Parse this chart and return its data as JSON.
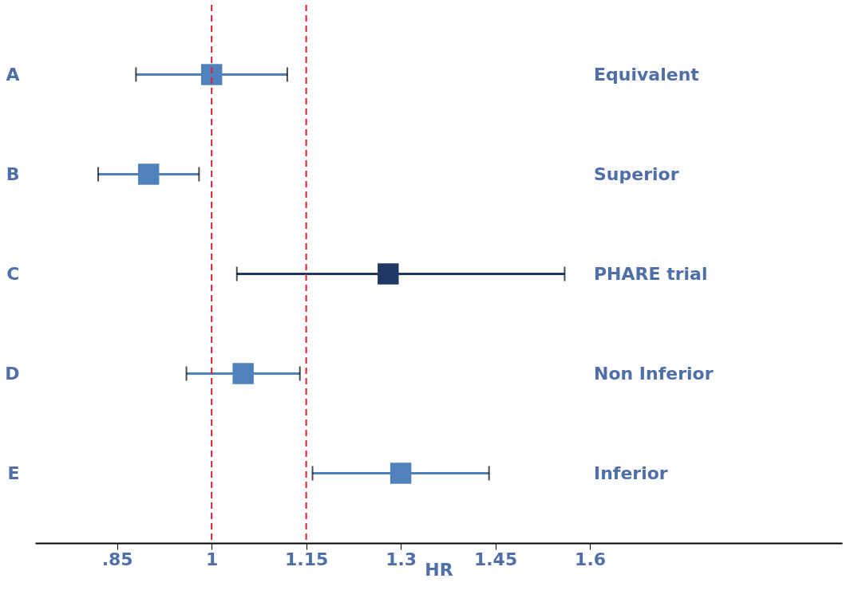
{
  "chart_data": {
    "type": "scatter",
    "orientation": "horizontal",
    "xlabel": "HR",
    "categories": [
      "A",
      "B",
      "C",
      "D",
      "E"
    ],
    "values": [
      1.0,
      0.9,
      1.28,
      1.05,
      1.3
    ],
    "errors": [
      [
        0.88,
        1.12
      ],
      [
        0.82,
        0.98
      ],
      [
        1.04,
        1.56
      ],
      [
        0.96,
        1.14
      ],
      [
        1.16,
        1.44
      ]
    ],
    "colors": [
      "#4f81bd",
      "#4f81bd",
      "#1f3864",
      "#4f81bd",
      "#4f81bd"
    ],
    "marker": "square",
    "xlim": [
      0.72,
      2.0
    ],
    "xticks": [
      {
        "value": 0.85,
        "label": ".85"
      },
      1,
      1.15,
      1.3,
      1.45,
      1.6
    ],
    "ref_lines": [
      {
        "axis": "x",
        "value": 1,
        "color": "#e0202f",
        "line_style": "dashed"
      },
      {
        "axis": "x",
        "value": 1.15,
        "color": "#e0202f",
        "line_style": "dashed"
      }
    ],
    "annotations": [
      "Equivalent",
      "Superior",
      "PHARE trial",
      "Non Inferior",
      "Inferior"
    ],
    "grid": false
  }
}
